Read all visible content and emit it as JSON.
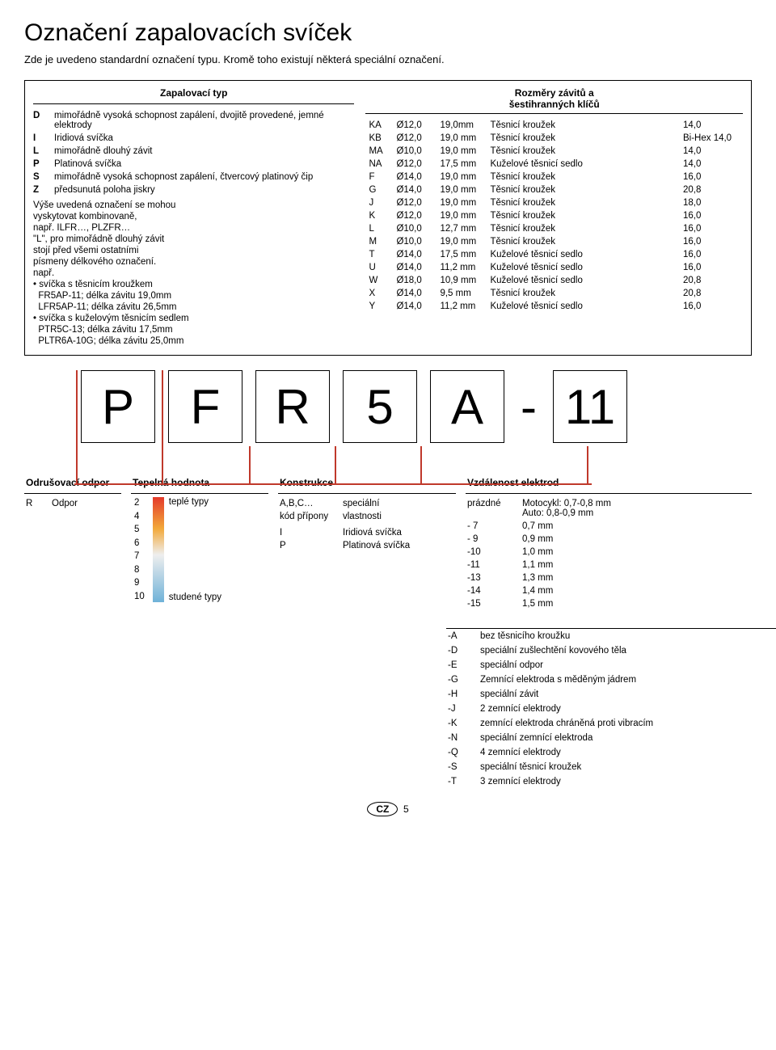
{
  "title": "Označení zapalovacích svíček",
  "subtitle": "Zde je uvedeno standardní označení typu. Kromě toho existují některá speciální označení.",
  "leftHeader": "Zapalovací typ",
  "typeCodes": [
    {
      "code": "D",
      "desc": "mimořádně vysoká schopnost zapálení, dvojitě provedené, jemné elektrody"
    },
    {
      "code": "I",
      "desc": "Iridiová svíčka"
    },
    {
      "code": "L",
      "desc": "mimořádně dlouhý závit"
    },
    {
      "code": "P",
      "desc": "Platinová svíčka"
    },
    {
      "code": "S",
      "desc": "mimořádně vysoká schopnost zapálení, čtvercový platinový čip"
    },
    {
      "code": "Z",
      "desc": "předsunutá poloha jiskry"
    }
  ],
  "typeNotes": [
    "Výše uvedená označení se mohou",
    "vyskytovat kombinovaně,",
    "např. ILFR…, PLZFR…",
    "\"L\", pro mimořádně dlouhý závit",
    "stojí před všemi ostatními",
    "písmeny délkového označení.",
    "např.",
    "• svíčka s těsnicím kroužkem",
    "  FR5AP-11; délka závitu 19,0mm",
    "  LFR5AP-11; délka závitu 26,5mm",
    "• svíčka s kuželovým těsnicím sedlem",
    "  PTR5C-13; délka závitu 17,5mm",
    "  PLTR6A-10G; délka závitu 25,0mm"
  ],
  "rightHeader1": "Rozměry závitů a",
  "rightHeader2": "šestihranných klíčů",
  "threadRows": [
    {
      "c": "KA",
      "d": "Ø12,0",
      "l": "19,0mm",
      "t": "Těsnicí kroužek",
      "h": "14,0"
    },
    {
      "c": "KB",
      "d": "Ø12,0",
      "l": "19,0 mm",
      "t": "Těsnicí kroužek",
      "h": "Bi-Hex 14,0"
    },
    {
      "c": "MA",
      "d": "Ø10,0",
      "l": "19,0 mm",
      "t": "Těsnicí kroužek",
      "h": "14,0"
    },
    {
      "c": "NA",
      "d": "Ø12,0",
      "l": "17,5 mm",
      "t": "Kuželové těsnicí sedlo",
      "h": "14,0"
    },
    {
      "c": "F",
      "d": "Ø14,0",
      "l": "19,0 mm",
      "t": "Těsnicí kroužek",
      "h": "16,0"
    },
    {
      "c": "G",
      "d": "Ø14,0",
      "l": "19,0 mm",
      "t": "Těsnicí kroužek",
      "h": "20,8"
    },
    {
      "c": "J",
      "d": "Ø12,0",
      "l": "19,0 mm",
      "t": "Těsnicí kroužek",
      "h": "18,0"
    },
    {
      "c": "K",
      "d": "Ø12,0",
      "l": "19,0 mm",
      "t": "Těsnicí kroužek",
      "h": "16,0"
    },
    {
      "c": "L",
      "d": "Ø10,0",
      "l": "12,7 mm",
      "t": "Těsnicí kroužek",
      "h": "16,0"
    },
    {
      "c": "M",
      "d": "Ø10,0",
      "l": "19,0 mm",
      "t": "Těsnicí kroužek",
      "h": "16,0"
    },
    {
      "c": "T",
      "d": "Ø14,0",
      "l": "17,5 mm",
      "t": "Kuželové těsnicí sedlo",
      "h": "16,0"
    },
    {
      "c": "U",
      "d": "Ø14,0",
      "l": "11,2 mm",
      "t": "Kuželové těsnicí sedlo",
      "h": "16,0"
    },
    {
      "c": "W",
      "d": "Ø18,0",
      "l": "10,9 mm",
      "t": "Kuželové těsnicí sedlo",
      "h": "20,8"
    },
    {
      "c": "X",
      "d": "Ø14,0",
      "l": "9,5 mm",
      "t": "Těsnicí kroužek",
      "h": "20,8"
    },
    {
      "c": "Y",
      "d": "Ø14,0",
      "l": "11,2 mm",
      "t": "Kuželové těsnicí sedlo",
      "h": "16,0"
    }
  ],
  "letters": [
    "P",
    "F",
    "R",
    "5",
    "A",
    "-",
    "11"
  ],
  "sections": {
    "resistor": {
      "head": "Odrušovací odpor",
      "rows": [
        {
          "k": "R",
          "v": "Odpor"
        }
      ]
    },
    "heat": {
      "head": "Tepelná hodnota",
      "top": "teplé typy",
      "bottom": "studené typy",
      "nums": [
        "2",
        "4",
        "5",
        "6",
        "7",
        "8",
        "9",
        "10"
      ]
    },
    "construction": {
      "head": "Konstrukce",
      "rows": [
        {
          "k": "A,B,C…",
          "v": "speciální"
        },
        {
          "k": "kód přípony",
          "v": "vlastnosti"
        },
        {
          "k": "",
          "v": ""
        },
        {
          "k": "I",
          "v": "Iridiová svíčka"
        },
        {
          "k": "P",
          "v": "Platinová svíčka"
        }
      ]
    },
    "gap": {
      "head": "Vzdálenost elektrod",
      "rows": [
        {
          "k": "prázdné",
          "v": "Motocykl: 0,7-0,8 mm\nAuto: 0,8-0,9 mm"
        },
        {
          "k": "- 7",
          "v": "0,7 mm"
        },
        {
          "k": "- 9",
          "v": "0,9 mm"
        },
        {
          "k": "-10",
          "v": "1,0 mm"
        },
        {
          "k": "-11",
          "v": "1,1 mm"
        },
        {
          "k": "-13",
          "v": "1,3 mm"
        },
        {
          "k": "-14",
          "v": "1,4 mm"
        },
        {
          "k": "-15",
          "v": "1,5 mm"
        }
      ]
    }
  },
  "suffixes": [
    {
      "k": "-A",
      "v": "bez těsnicího kroužku"
    },
    {
      "k": "-D",
      "v": "speciální zušlechtění kovového těla"
    },
    {
      "k": "-E",
      "v": "speciální odpor"
    },
    {
      "k": "-G",
      "v": "Zemnící elektroda s měděným jádrem"
    },
    {
      "k": "-H",
      "v": "speciální závit"
    },
    {
      "k": "-J",
      "v": "2 zemnící elektrody"
    },
    {
      "k": "-K",
      "v": "zemnící elektroda chráněná proti vibracím"
    },
    {
      "k": "-N",
      "v": "speciální zemnící elektroda"
    },
    {
      "k": "-Q",
      "v": "4 zemnící elektrody"
    },
    {
      "k": "-S",
      "v": "speciální těsnicí kroužek"
    },
    {
      "k": "-T",
      "v": "3 zemnící elektrody"
    }
  ],
  "footer": {
    "cz": "CZ",
    "page": "5"
  },
  "lineColor": "#c0392b"
}
